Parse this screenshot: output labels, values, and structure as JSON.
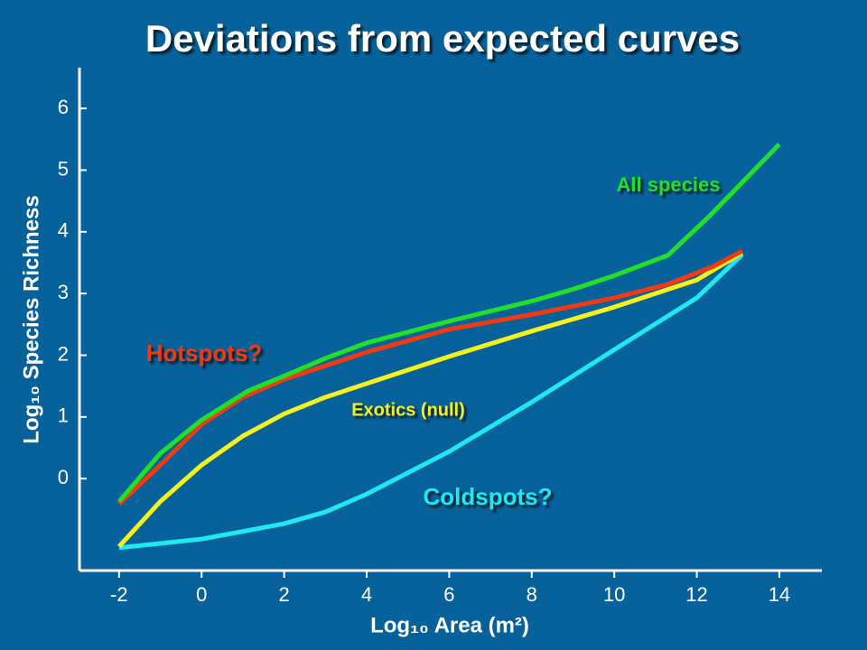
{
  "chart_data": {
    "type": "line",
    "title": "Deviations from expected curves",
    "x_label": "Log₁₀ Area (m²)",
    "y_label": "Log₁₀ Species Richness",
    "xlim": [
      -2.96,
      15.03
    ],
    "ylim": [
      -1.49,
      6.66
    ],
    "xticks": [
      -2,
      0,
      2,
      4,
      6,
      8,
      10,
      12,
      14
    ],
    "yticks": [
      0,
      1,
      2,
      3,
      4,
      5,
      6
    ],
    "series": [
      {
        "name": "All species",
        "color": "#22e02a",
        "x": [
          -2,
          -1,
          0,
          1.12,
          2.06,
          3,
          4,
          6.05,
          8.02,
          9,
          10,
          11.3,
          12.3,
          14
        ],
        "values": [
          -0.37,
          0.41,
          0.95,
          1.42,
          1.68,
          1.95,
          2.2,
          2.56,
          2.88,
          3.07,
          3.29,
          3.62,
          4.25,
          5.42
        ]
      },
      {
        "name": "Hotspots?",
        "color": "#f23a12",
        "x": [
          -2,
          -1,
          0,
          1,
          2,
          4,
          6,
          8,
          10,
          11.3,
          12.4,
          13.1
        ],
        "values": [
          -0.41,
          0.22,
          0.88,
          1.32,
          1.61,
          2.05,
          2.42,
          2.66,
          2.93,
          3.15,
          3.44,
          3.69
        ]
      },
      {
        "name": "Exotics (null)",
        "color": "#f5f01e",
        "x": [
          -2,
          -1,
          0,
          1,
          2,
          3,
          4,
          6,
          8,
          10,
          12,
          13.1
        ],
        "values": [
          -1.1,
          -0.37,
          0.22,
          0.69,
          1.05,
          1.32,
          1.54,
          1.98,
          2.39,
          2.78,
          3.22,
          3.66
        ]
      },
      {
        "name": "Coldspots?",
        "color": "#1ee8f0",
        "x": [
          -2,
          0,
          2,
          3,
          4,
          6,
          8,
          10,
          12,
          13.1
        ],
        "values": [
          -1.12,
          -0.98,
          -0.73,
          -0.54,
          -0.25,
          0.44,
          1.24,
          2.09,
          2.93,
          3.63
        ]
      }
    ]
  }
}
